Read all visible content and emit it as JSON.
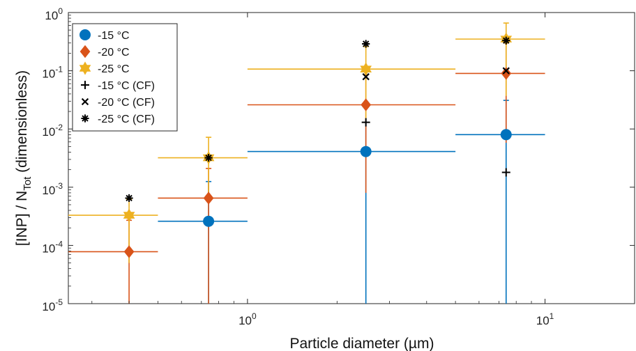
{
  "chart_data": {
    "type": "scatter",
    "xlabel": "Particle diameter (µm)",
    "ylabel": {
      "prefix": "[INP] / N",
      "subscript": "Tot",
      "suffix": " (dimensionless)"
    },
    "x_scale": "log",
    "y_scale": "log",
    "xlim": [
      0.25,
      20
    ],
    "ylim": [
      1e-05,
      1
    ],
    "x_ticks": [
      {
        "value": 1,
        "base": "10",
        "exp": "0"
      },
      {
        "value": 10,
        "base": "10",
        "exp": "1"
      }
    ],
    "y_ticks": [
      {
        "value": 1,
        "base": "10",
        "exp": "0"
      },
      {
        "value": 0.1,
        "base": "10",
        "exp": "-1"
      },
      {
        "value": 0.01,
        "base": "10",
        "exp": "-2"
      },
      {
        "value": 0.001,
        "base": "10",
        "exp": "-3"
      },
      {
        "value": 0.0001,
        "base": "10",
        "exp": "-4"
      },
      {
        "value": 1e-05,
        "base": "10",
        "exp": "-5"
      }
    ],
    "grid": false,
    "legend_position": "top-left",
    "series": [
      {
        "name": "-15 °C",
        "marker": "circle",
        "color": "#0072BD",
        "points": [
          {
            "x": 0.74,
            "y": 0.00026,
            "xlo": 0.5,
            "xhi": 1.0,
            "ylo": 1e-05,
            "yhi": 0.00125
          },
          {
            "x": 2.5,
            "y": 0.0041,
            "xlo": 1.0,
            "xhi": 5.0,
            "ylo": 1e-05,
            "yhi": 0.013
          },
          {
            "x": 7.4,
            "y": 0.008,
            "xlo": 5.0,
            "xhi": 10.0,
            "ylo": 1e-05,
            "yhi": 0.031
          }
        ]
      },
      {
        "name": "-20 °C",
        "marker": "diamond",
        "color": "#D95319",
        "points": [
          {
            "x": 0.4,
            "y": 7.8e-05,
            "xlo": 0.25,
            "xhi": 0.5,
            "ylo": 1e-05,
            "yhi": 0.00027
          },
          {
            "x": 0.74,
            "y": 0.00065,
            "xlo": 0.5,
            "xhi": 1.0,
            "ylo": 1e-05,
            "yhi": 0.0021
          },
          {
            "x": 2.5,
            "y": 0.026,
            "xlo": 1.0,
            "xhi": 5.0,
            "ylo": 0.0008,
            "yhi": 0.085
          },
          {
            "x": 7.4,
            "y": 0.09,
            "xlo": 5.0,
            "xhi": 10.0,
            "ylo": 0.0058,
            "yhi": 0.3
          }
        ]
      },
      {
        "name": "-25 °C",
        "marker": "hexagram",
        "color": "#EDB120",
        "points": [
          {
            "x": 0.4,
            "y": 0.00033,
            "xlo": 0.25,
            "xhi": 0.5,
            "ylo": 5e-05,
            "yhi": 0.00062
          },
          {
            "x": 0.74,
            "y": 0.0032,
            "xlo": 0.5,
            "xhi": 1.0,
            "ylo": 0.0008,
            "yhi": 0.0072
          },
          {
            "x": 2.5,
            "y": 0.107,
            "xlo": 1.0,
            "xhi": 5.0,
            "ylo": 0.013,
            "yhi": 0.26
          },
          {
            "x": 7.4,
            "y": 0.35,
            "xlo": 5.0,
            "xhi": 10.0,
            "ylo": 0.037,
            "yhi": 0.66
          }
        ]
      },
      {
        "name": "-15 °C (CF)",
        "marker": "plus",
        "color": "#000000",
        "points": [
          {
            "x": 2.5,
            "y": 0.013
          },
          {
            "x": 7.4,
            "y": 0.0018
          }
        ]
      },
      {
        "name": "-20 °C (CF)",
        "marker": "x",
        "color": "#000000",
        "points": [
          {
            "x": 2.5,
            "y": 0.079
          },
          {
            "x": 7.4,
            "y": 0.1
          }
        ]
      },
      {
        "name": "-25 °C (CF)",
        "marker": "asterisk",
        "color": "#000000",
        "points": [
          {
            "x": 0.4,
            "y": 0.00065
          },
          {
            "x": 0.74,
            "y": 0.0032
          },
          {
            "x": 2.5,
            "y": 0.29
          },
          {
            "x": 7.4,
            "y": 0.33
          }
        ]
      }
    ]
  }
}
